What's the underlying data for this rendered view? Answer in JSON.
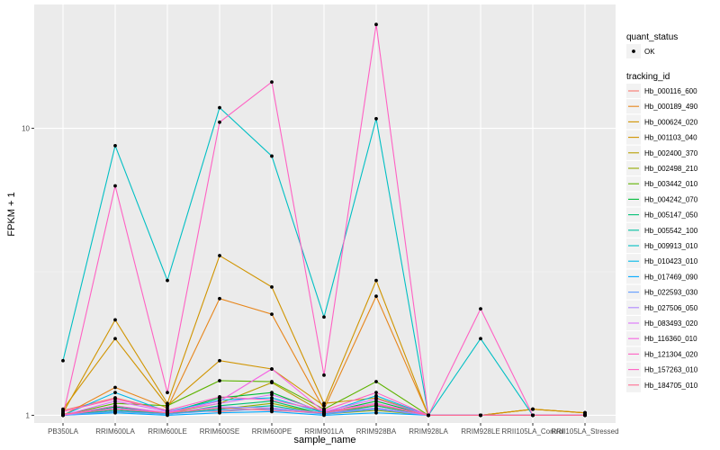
{
  "chart_data": {
    "type": "line",
    "xlabel": "sample_name",
    "ylabel": "FPKM + 1",
    "y_scale": "log10",
    "ylim": [
      0.94,
      27
    ],
    "y_ticks": [
      1,
      10
    ],
    "y_tick_labels": [
      "1 -",
      "10 -"
    ],
    "grid": true,
    "legend_placement": "right",
    "categories": [
      "PB350LA",
      "RRIM600LA",
      "RRIM600LE",
      "RRIM600SE",
      "RRIM600PE",
      "RRIM901LA",
      "RRIM928BA",
      "RRIM928LA",
      "RRIM928LE",
      "RRII105LA_Control",
      "RRII105LA_Stressed"
    ],
    "shape_legend": {
      "title": "quant_status",
      "entries": [
        "OK"
      ]
    },
    "legend_title": "tracking_id",
    "series": [
      {
        "name": "Hb_000116_600",
        "color": "#F8766D",
        "values": [
          1.04,
          1.15,
          1.04,
          1.03,
          1.06,
          1.02,
          1.05,
          1.0,
          1.0,
          1.0,
          1.0
        ]
      },
      {
        "name": "Hb_000189_490",
        "color": "#E7861B",
        "values": [
          1.0,
          1.25,
          1.06,
          2.55,
          2.25,
          1.05,
          2.6,
          1.0,
          1.0,
          1.05,
          1.02
        ]
      },
      {
        "name": "Hb_000624_020",
        "color": "#D09400",
        "values": [
          1.05,
          1.85,
          1.08,
          1.55,
          1.45,
          1.08,
          2.95,
          1.0,
          1.0,
          1.05,
          1.02
        ]
      },
      {
        "name": "Hb_001103_040",
        "color": "#D09400",
        "values": [
          1.02,
          2.15,
          1.1,
          3.6,
          2.8,
          1.1,
          1.15,
          1.0,
          1.0,
          1.05,
          1.02
        ]
      },
      {
        "name": "Hb_002400_370",
        "color": "#B79F00",
        "values": [
          1.01,
          1.05,
          1.02,
          1.1,
          1.3,
          1.02,
          1.08,
          1.0,
          1.0,
          1.0,
          1.0
        ]
      },
      {
        "name": "Hb_002498_210",
        "color": "#93AA00",
        "values": [
          1.0,
          1.03,
          1.01,
          1.05,
          1.1,
          1.01,
          1.04,
          1.0,
          1.0,
          1.0,
          1.0
        ]
      },
      {
        "name": "Hb_003442_010",
        "color": "#5EB300",
        "values": [
          1.0,
          1.1,
          1.08,
          1.32,
          1.31,
          1.05,
          1.31,
          1.0,
          1.0,
          1.0,
          1.0
        ]
      },
      {
        "name": "Hb_004242_070",
        "color": "#00BA38",
        "values": [
          1.0,
          1.07,
          1.02,
          1.15,
          1.2,
          1.02,
          1.12,
          1.0,
          1.0,
          1.0,
          1.0
        ]
      },
      {
        "name": "Hb_005147_050",
        "color": "#00BF74",
        "values": [
          1.0,
          1.05,
          1.01,
          1.08,
          1.12,
          1.01,
          1.08,
          1.0,
          1.0,
          1.0,
          1.0
        ]
      },
      {
        "name": "Hb_005542_100",
        "color": "#00C19F",
        "values": [
          1.0,
          1.04,
          1.01,
          1.05,
          1.08,
          1.01,
          1.06,
          1.0,
          1.0,
          1.0,
          1.0
        ]
      },
      {
        "name": "Hb_009913_010",
        "color": "#00BFC4",
        "values": [
          1.55,
          8.7,
          2.95,
          11.8,
          8.0,
          2.2,
          10.8,
          1.0,
          1.85,
          1.0,
          1.0
        ]
      },
      {
        "name": "Hb_010423_010",
        "color": "#00B8E7",
        "values": [
          1.0,
          1.2,
          1.03,
          1.13,
          1.15,
          1.02,
          1.17,
          1.0,
          1.0,
          1.0,
          1.0
        ]
      },
      {
        "name": "Hb_017469_090",
        "color": "#00A9FF",
        "values": [
          1.0,
          1.02,
          1.0,
          1.02,
          1.03,
          1.0,
          1.02,
          1.0,
          1.0,
          1.0,
          1.0
        ]
      },
      {
        "name": "Hb_022593_030",
        "color": "#619CFF",
        "values": [
          1.0,
          1.03,
          1.01,
          1.04,
          1.05,
          1.01,
          1.05,
          1.0,
          1.0,
          1.0,
          1.0
        ]
      },
      {
        "name": "Hb_027506_050",
        "color": "#AE87FF",
        "values": [
          1.0,
          1.06,
          1.02,
          1.07,
          1.06,
          1.02,
          1.06,
          1.0,
          1.0,
          1.0,
          1.0
        ]
      },
      {
        "name": "Hb_083493_020",
        "color": "#DB72FB",
        "values": [
          1.0,
          1.12,
          1.03,
          1.1,
          1.18,
          1.03,
          1.14,
          1.0,
          1.0,
          1.0,
          1.0
        ]
      },
      {
        "name": "Hb_116360_010",
        "color": "#F564E3",
        "values": [
          1.0,
          1.08,
          1.02,
          1.12,
          1.45,
          1.03,
          1.1,
          1.0,
          1.0,
          1.0,
          1.0
        ]
      },
      {
        "name": "Hb_121304_020",
        "color": "#FF61C3",
        "values": [
          1.03,
          1.14,
          1.04,
          1.16,
          1.13,
          1.04,
          1.2,
          1.0,
          1.0,
          1.0,
          1.0
        ]
      },
      {
        "name": "Hb_157263_010",
        "color": "#FF61C3",
        "values": [
          1.0,
          6.3,
          1.2,
          10.5,
          14.5,
          1.38,
          23.0,
          1.0,
          2.35,
          1.0,
          1.0
        ]
      },
      {
        "name": "Hb_184705_010",
        "color": "#FF6C91",
        "values": [
          1.01,
          1.05,
          1.02,
          1.06,
          1.04,
          1.02,
          1.09,
          1.0,
          1.0,
          1.0,
          1.0
        ]
      }
    ]
  }
}
